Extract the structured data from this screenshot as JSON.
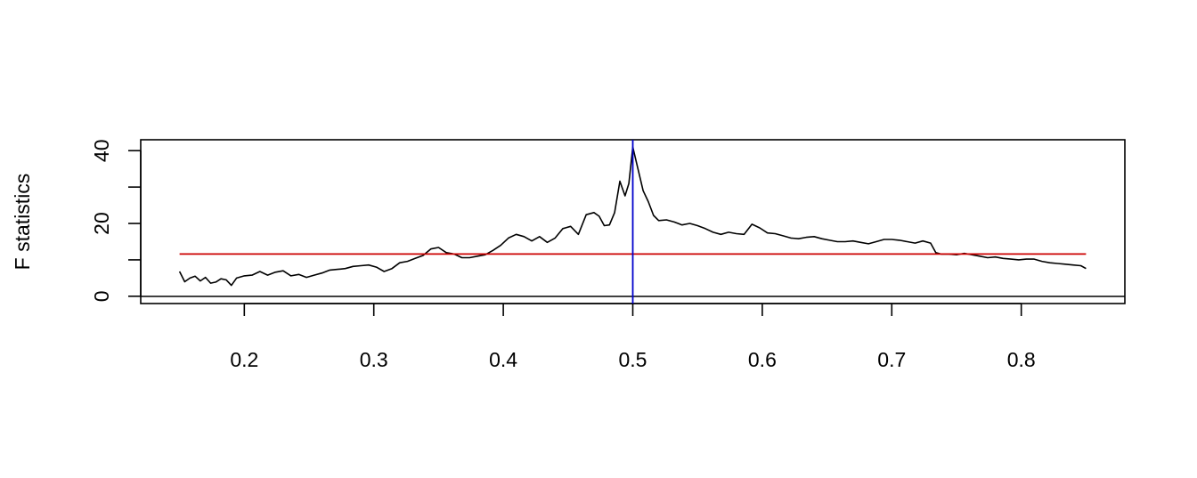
{
  "chart_data": {
    "type": "line",
    "title": "",
    "xlabel": "",
    "ylabel": "F statistics",
    "xlim": [
      0.12,
      0.88
    ],
    "ylim": [
      -2,
      43
    ],
    "x_ticks": [
      0.2,
      0.3,
      0.4,
      0.5,
      0.6,
      0.7,
      0.8
    ],
    "x_tick_labels": [
      "0.2",
      "0.3",
      "0.4",
      "0.5",
      "0.6",
      "0.7",
      "0.8"
    ],
    "y_ticks": [
      0,
      10,
      20,
      30,
      40
    ],
    "y_tick_labels": [
      "0",
      "",
      "20",
      "",
      "40"
    ],
    "grid": false,
    "series": [
      {
        "color": "#000000",
        "x": [
          0.15,
          0.154,
          0.158,
          0.162,
          0.166,
          0.17,
          0.174,
          0.178,
          0.182,
          0.186,
          0.19,
          0.194,
          0.2,
          0.206,
          0.212,
          0.218,
          0.224,
          0.23,
          0.236,
          0.242,
          0.248,
          0.254,
          0.26,
          0.266,
          0.272,
          0.278,
          0.284,
          0.29,
          0.296,
          0.302,
          0.308,
          0.314,
          0.32,
          0.326,
          0.332,
          0.338,
          0.344,
          0.35,
          0.356,
          0.362,
          0.368,
          0.374,
          0.38,
          0.386,
          0.392,
          0.398,
          0.404,
          0.41,
          0.416,
          0.422,
          0.428,
          0.434,
          0.44,
          0.446,
          0.452,
          0.458,
          0.464,
          0.47,
          0.474,
          0.478,
          0.482,
          0.486,
          0.49,
          0.494,
          0.497,
          0.5,
          0.504,
          0.508,
          0.512,
          0.516,
          0.52,
          0.526,
          0.532,
          0.538,
          0.544,
          0.55,
          0.556,
          0.562,
          0.568,
          0.574,
          0.58,
          0.586,
          0.592,
          0.598,
          0.604,
          0.61,
          0.616,
          0.622,
          0.628,
          0.634,
          0.64,
          0.646,
          0.652,
          0.658,
          0.664,
          0.67,
          0.676,
          0.682,
          0.688,
          0.694,
          0.7,
          0.706,
          0.712,
          0.718,
          0.724,
          0.73,
          0.734,
          0.738,
          0.744,
          0.75,
          0.756,
          0.762,
          0.768,
          0.774,
          0.78,
          0.786,
          0.792,
          0.798,
          0.804,
          0.81,
          0.816,
          0.822,
          0.828,
          0.834,
          0.84,
          0.846,
          0.85
        ],
        "values": [
          6.8,
          4.0,
          5.0,
          5.5,
          4.2,
          5.2,
          3.6,
          3.9,
          4.8,
          4.5,
          3.0,
          5.0,
          5.6,
          5.8,
          6.8,
          5.8,
          6.6,
          7.0,
          5.6,
          6.0,
          5.2,
          5.8,
          6.4,
          7.2,
          7.4,
          7.6,
          8.2,
          8.4,
          8.6,
          8.0,
          6.8,
          7.6,
          9.2,
          9.6,
          10.4,
          11.2,
          13.0,
          13.4,
          12.0,
          11.6,
          10.6,
          10.6,
          11.0,
          11.4,
          12.6,
          14.0,
          16.0,
          17.0,
          16.4,
          15.2,
          16.4,
          14.8,
          16.0,
          18.6,
          19.2,
          17.0,
          22.4,
          23.0,
          22.0,
          19.4,
          19.6,
          23.0,
          31.6,
          27.6,
          31.0,
          41.0,
          35.0,
          29.0,
          26.0,
          22.2,
          20.8,
          21.0,
          20.4,
          19.6,
          20.0,
          19.4,
          18.6,
          17.6,
          17.0,
          17.6,
          17.2,
          17.0,
          19.8,
          18.8,
          17.4,
          17.2,
          16.6,
          16.0,
          15.8,
          16.2,
          16.4,
          15.8,
          15.4,
          15.0,
          15.0,
          15.2,
          14.8,
          14.4,
          15.0,
          15.6,
          15.6,
          15.4,
          15.0,
          14.6,
          15.2,
          14.6,
          12.0,
          11.6,
          11.6,
          11.4,
          11.8,
          11.4,
          11.0,
          10.6,
          10.8,
          10.4,
          10.2,
          10.0,
          10.2,
          10.2,
          9.6,
          9.2,
          9.0,
          8.8,
          8.6,
          8.4,
          7.6
        ]
      }
    ],
    "horizontal_line": {
      "y": 11.6,
      "color": "#cc0000",
      "x_range": [
        0.15,
        0.85
      ]
    },
    "vertical_line": {
      "x": 0.5,
      "color": "#0000cc"
    }
  }
}
